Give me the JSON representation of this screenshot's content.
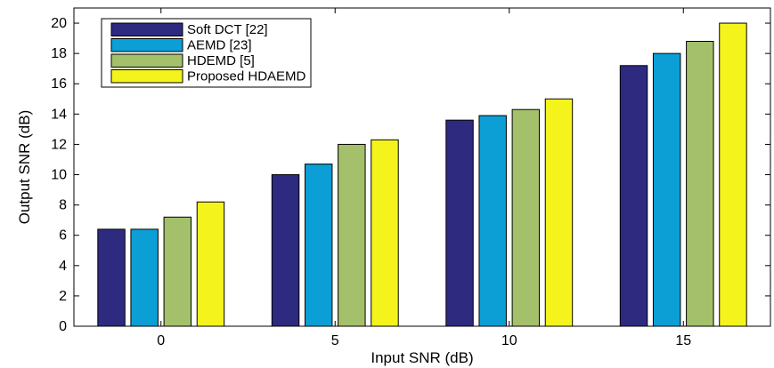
{
  "chart_data": {
    "type": "bar",
    "title": "",
    "xlabel": "Input SNR (dB)",
    "ylabel": "Output SNR (dB)",
    "categories": [
      "0",
      "5",
      "10",
      "15"
    ],
    "ylim": [
      0,
      21
    ],
    "yticks": [
      0,
      2,
      4,
      6,
      8,
      10,
      12,
      14,
      16,
      18,
      20
    ],
    "grid": false,
    "legend_position": "top-left",
    "series": [
      {
        "name": "Soft DCT [22]",
        "color": "#2e2a80",
        "values": [
          6.4,
          10.0,
          13.6,
          17.2
        ]
      },
      {
        "name": "AEMD [23]",
        "color": "#0b9fd6",
        "values": [
          6.4,
          10.7,
          13.9,
          18.0
        ]
      },
      {
        "name": "HDEMD [5]",
        "color": "#a4c06a",
        "values": [
          7.2,
          12.0,
          14.3,
          18.8
        ]
      },
      {
        "name": "Proposed HDAEMD",
        "color": "#f4f41c",
        "values": [
          8.2,
          12.3,
          15.0,
          20.0
        ]
      }
    ]
  }
}
